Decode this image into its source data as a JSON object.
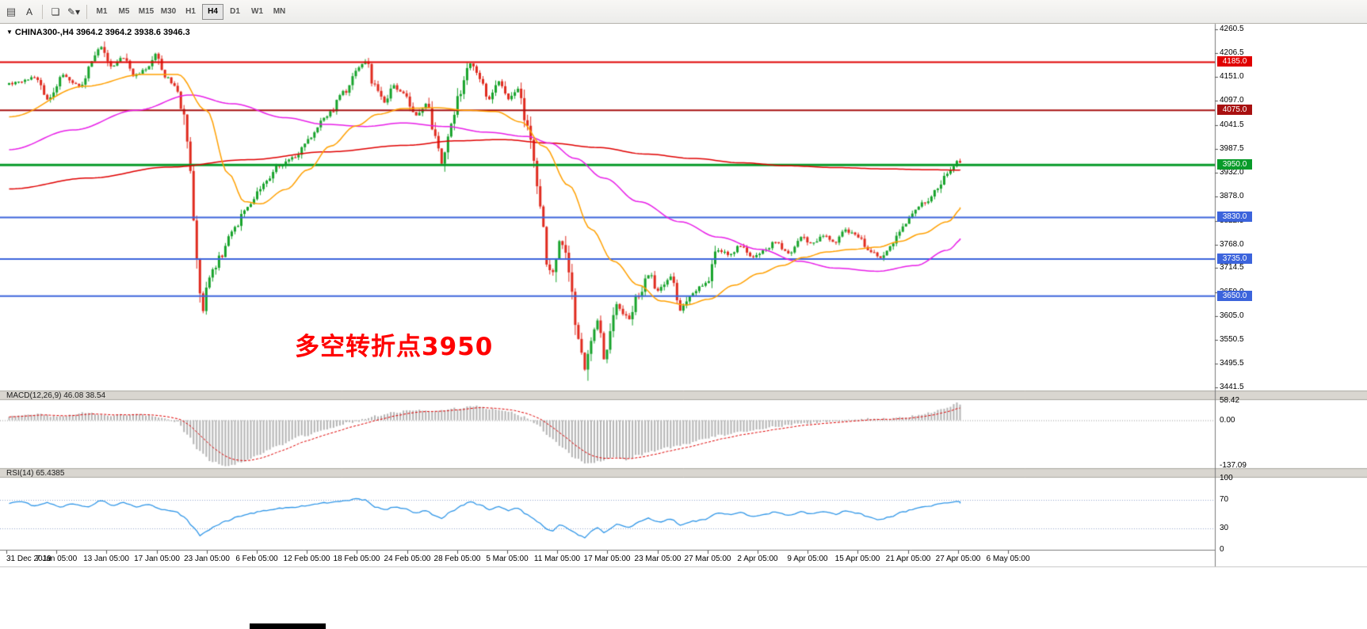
{
  "toolbar": {
    "icons": {
      "layout": "▤",
      "annotate": "A",
      "objects": "❏",
      "draw": "✎",
      "caret": "▾"
    },
    "timeframes": [
      "M1",
      "M5",
      "M15",
      "M30",
      "H1",
      "H4",
      "D1",
      "W1",
      "MN"
    ],
    "selected_timeframe": "H4"
  },
  "chart": {
    "caret": "▼",
    "title": "CHINA300-,H4  3964.2 3964.2 3938.6 3946.3",
    "annotation": "多空转折点3950",
    "price_scale_ticks": [
      "4260.5",
      "4206.5",
      "4151.0",
      "4097.0",
      "4041.5",
      "3987.5",
      "3932.0",
      "3878.0",
      "3822.5",
      "3768.0",
      "3714.5",
      "3659.0",
      "3605.0",
      "3550.5",
      "3495.5",
      "3441.5"
    ],
    "levels": [
      {
        "label": "4185.0",
        "price": 4185.0,
        "color": "#e00000",
        "width": 2
      },
      {
        "label": "4075.0",
        "price": 4075.0,
        "color": "#a81010",
        "width": 2
      },
      {
        "label": "3950.0",
        "price": 3950.0,
        "color": "#089b2a",
        "width": 3
      },
      {
        "label": "3830.0",
        "price": 3830.0,
        "color": "#3c64dc",
        "width": 2
      },
      {
        "label": "3735.0",
        "price": 3735.0,
        "color": "#3c64dc",
        "width": 2
      },
      {
        "label": "3650.0",
        "price": 3650.0,
        "color": "#3c64dc",
        "width": 2
      }
    ]
  },
  "chart_data": {
    "type": "candlestick",
    "symbol": "CHINA300-",
    "timeframe": "H4",
    "last_bar": {
      "open": 3964.2,
      "high": 3964.2,
      "low": 3938.6,
      "close": 3946.3
    },
    "y_range": [
      3436,
      4271
    ],
    "bars": 300,
    "colors": {
      "up": "#17a32b",
      "down": "#e02a1e",
      "ma_slow": "#e00000",
      "ma_mid": "#e81ee8",
      "ma_fast": "#ffa000",
      "macd_hist": "#b4b4b4",
      "macd_signal": "#e00000",
      "rsi": "#2f96e8"
    },
    "price_path": [
      [
        0,
        4135
      ],
      [
        8,
        4150
      ],
      [
        12,
        4100
      ],
      [
        17,
        4155
      ],
      [
        22,
        4130
      ],
      [
        27,
        4195
      ],
      [
        29,
        4222
      ],
      [
        32,
        4175
      ],
      [
        36,
        4195
      ],
      [
        39,
        4155
      ],
      [
        43,
        4170
      ],
      [
        46,
        4205
      ],
      [
        49,
        4150
      ],
      [
        52,
        4135
      ],
      [
        55,
        4060
      ],
      [
        57,
        3940
      ],
      [
        59,
        3720
      ],
      [
        61,
        3615
      ],
      [
        63,
        3700
      ],
      [
        67,
        3745
      ],
      [
        70,
        3800
      ],
      [
        75,
        3850
      ],
      [
        80,
        3905
      ],
      [
        85,
        3950
      ],
      [
        90,
        3970
      ],
      [
        95,
        4015
      ],
      [
        100,
        4065
      ],
      [
        106,
        4120
      ],
      [
        109,
        4165
      ],
      [
        112,
        4190
      ],
      [
        115,
        4130
      ],
      [
        118,
        4095
      ],
      [
        121,
        4130
      ],
      [
        124,
        4115
      ],
      [
        128,
        4065
      ],
      [
        131,
        4090
      ],
      [
        134,
        4010
      ],
      [
        136,
        3955
      ],
      [
        139,
        4035
      ],
      [
        142,
        4120
      ],
      [
        145,
        4185
      ],
      [
        148,
        4150
      ],
      [
        151,
        4100
      ],
      [
        154,
        4140
      ],
      [
        157,
        4100
      ],
      [
        160,
        4125
      ],
      [
        163,
        4040
      ],
      [
        165,
        3960
      ],
      [
        167,
        3870
      ],
      [
        169,
        3730
      ],
      [
        171,
        3700
      ],
      [
        173,
        3780
      ],
      [
        175,
        3750
      ],
      [
        177,
        3650
      ],
      [
        179,
        3550
      ],
      [
        181,
        3480
      ],
      [
        183,
        3560
      ],
      [
        185,
        3600
      ],
      [
        187,
        3510
      ],
      [
        189,
        3560
      ],
      [
        191,
        3630
      ],
      [
        195,
        3600
      ],
      [
        198,
        3655
      ],
      [
        201,
        3700
      ],
      [
        204,
        3665
      ],
      [
        208,
        3690
      ],
      [
        211,
        3620
      ],
      [
        215,
        3655
      ],
      [
        219,
        3680
      ],
      [
        223,
        3755
      ],
      [
        227,
        3745
      ],
      [
        230,
        3765
      ],
      [
        234,
        3740
      ],
      [
        238,
        3760
      ],
      [
        241,
        3775
      ],
      [
        245,
        3750
      ],
      [
        249,
        3785
      ],
      [
        252,
        3770
      ],
      [
        256,
        3790
      ],
      [
        260,
        3775
      ],
      [
        263,
        3800
      ],
      [
        267,
        3785
      ],
      [
        271,
        3750
      ],
      [
        274,
        3735
      ],
      [
        277,
        3760
      ],
      [
        281,
        3810
      ],
      [
        284,
        3840
      ],
      [
        288,
        3865
      ],
      [
        292,
        3900
      ],
      [
        295,
        3930
      ],
      [
        298,
        3958
      ],
      [
        300,
        3946
      ]
    ],
    "moving_averages": [
      {
        "name": "ma-slow-red",
        "color": "#e00000",
        "points": [
          [
            0,
            3895
          ],
          [
            25,
            3920
          ],
          [
            50,
            3945
          ],
          [
            75,
            3962
          ],
          [
            100,
            3980
          ],
          [
            125,
            3995
          ],
          [
            140,
            4005
          ],
          [
            155,
            4008
          ],
          [
            170,
            4000
          ],
          [
            185,
            3990
          ],
          [
            200,
            3975
          ],
          [
            215,
            3965
          ],
          [
            230,
            3955
          ],
          [
            245,
            3948
          ],
          [
            260,
            3944
          ],
          [
            275,
            3941
          ],
          [
            290,
            3939
          ],
          [
            300,
            3938
          ]
        ]
      },
      {
        "name": "ma-mid-magenta",
        "color": "#e81ee8",
        "points": [
          [
            0,
            3985
          ],
          [
            20,
            4030
          ],
          [
            40,
            4075
          ],
          [
            57,
            4110
          ],
          [
            70,
            4090
          ],
          [
            87,
            4058
          ],
          [
            99,
            4043
          ],
          [
            112,
            4038
          ],
          [
            124,
            4046
          ],
          [
            137,
            4038
          ],
          [
            150,
            4025
          ],
          [
            163,
            4015
          ],
          [
            170,
            4000
          ],
          [
            178,
            3965
          ],
          [
            187,
            3920
          ],
          [
            198,
            3866
          ],
          [
            211,
            3820
          ],
          [
            223,
            3785
          ],
          [
            236,
            3757
          ],
          [
            248,
            3730
          ],
          [
            260,
            3714
          ],
          [
            273,
            3707
          ],
          [
            285,
            3720
          ],
          [
            295,
            3755
          ],
          [
            300,
            3782
          ]
        ]
      },
      {
        "name": "ma-fast-orange",
        "color": "#ffa000",
        "points": [
          [
            0,
            4060
          ],
          [
            24,
            4130
          ],
          [
            42,
            4157
          ],
          [
            53,
            4157
          ],
          [
            62,
            4075
          ],
          [
            69,
            3930
          ],
          [
            74,
            3866
          ],
          [
            79,
            3861
          ],
          [
            87,
            3894
          ],
          [
            94,
            3939
          ],
          [
            101,
            3993
          ],
          [
            109,
            4039
          ],
          [
            116,
            4066
          ],
          [
            124,
            4079
          ],
          [
            134,
            4081
          ],
          [
            144,
            4075
          ],
          [
            153,
            4072
          ],
          [
            161,
            4048
          ],
          [
            168,
            3993
          ],
          [
            176,
            3903
          ],
          [
            183,
            3803
          ],
          [
            190,
            3730
          ],
          [
            198,
            3675
          ],
          [
            205,
            3639
          ],
          [
            213,
            3630
          ],
          [
            220,
            3643
          ],
          [
            228,
            3675
          ],
          [
            236,
            3702
          ],
          [
            243,
            3720
          ],
          [
            250,
            3739
          ],
          [
            257,
            3751
          ],
          [
            265,
            3757
          ],
          [
            273,
            3762
          ],
          [
            280,
            3775
          ],
          [
            287,
            3793
          ],
          [
            295,
            3820
          ],
          [
            300,
            3853
          ]
        ]
      }
    ],
    "macd": {
      "label": "MACD(12,26,9) 46.08 38.54",
      "scale": [
        "58.42",
        "0.00",
        "-137.09"
      ],
      "range": [
        58.42,
        -137.09
      ],
      "path": [
        [
          0,
          12
        ],
        [
          8,
          18
        ],
        [
          16,
          10
        ],
        [
          24,
          22
        ],
        [
          32,
          15
        ],
        [
          40,
          18
        ],
        [
          48,
          8
        ],
        [
          53,
          -5
        ],
        [
          56,
          -45
        ],
        [
          60,
          -95
        ],
        [
          64,
          -125
        ],
        [
          68,
          -137
        ],
        [
          73,
          -128
        ],
        [
          78,
          -105
        ],
        [
          85,
          -75
        ],
        [
          92,
          -48
        ],
        [
          100,
          -25
        ],
        [
          108,
          -5
        ],
        [
          115,
          12
        ],
        [
          122,
          25
        ],
        [
          128,
          32
        ],
        [
          134,
          28
        ],
        [
          140,
          35
        ],
        [
          146,
          42
        ],
        [
          152,
          35
        ],
        [
          158,
          25
        ],
        [
          162,
          10
        ],
        [
          166,
          -15
        ],
        [
          170,
          -50
        ],
        [
          174,
          -85
        ],
        [
          178,
          -115
        ],
        [
          182,
          -130
        ],
        [
          186,
          -122
        ],
        [
          190,
          -112
        ],
        [
          194,
          -118
        ],
        [
          198,
          -105
        ],
        [
          203,
          -92
        ],
        [
          208,
          -82
        ],
        [
          213,
          -70
        ],
        [
          218,
          -58
        ],
        [
          224,
          -45
        ],
        [
          230,
          -34
        ],
        [
          236,
          -26
        ],
        [
          242,
          -18
        ],
        [
          248,
          -12
        ],
        [
          254,
          -7
        ],
        [
          260,
          -3
        ],
        [
          266,
          2
        ],
        [
          272,
          5
        ],
        [
          277,
          4
        ],
        [
          281,
          8
        ],
        [
          285,
          14
        ],
        [
          289,
          22
        ],
        [
          293,
          32
        ],
        [
          296,
          42
        ],
        [
          298,
          52
        ],
        [
          300,
          46
        ]
      ]
    },
    "rsi": {
      "label": "RSI(14) 65.4385",
      "scale": [
        "100",
        "70",
        "30",
        "0"
      ],
      "level_lines": [
        70,
        30
      ],
      "path": [
        [
          0,
          65
        ],
        [
          4,
          68
        ],
        [
          8,
          61
        ],
        [
          12,
          66
        ],
        [
          16,
          60
        ],
        [
          20,
          64
        ],
        [
          25,
          61
        ],
        [
          29,
          69
        ],
        [
          33,
          62
        ],
        [
          36,
          66
        ],
        [
          40,
          60
        ],
        [
          44,
          63
        ],
        [
          48,
          57
        ],
        [
          52,
          54
        ],
        [
          55,
          46
        ],
        [
          58,
          32
        ],
        [
          60,
          20
        ],
        [
          62,
          26
        ],
        [
          65,
          34
        ],
        [
          68,
          40
        ],
        [
          72,
          46
        ],
        [
          76,
          51
        ],
        [
          80,
          55
        ],
        [
          85,
          58
        ],
        [
          90,
          60
        ],
        [
          95,
          63
        ],
        [
          100,
          66
        ],
        [
          106,
          69
        ],
        [
          109,
          71
        ],
        [
          112,
          70
        ],
        [
          115,
          60
        ],
        [
          118,
          56
        ],
        [
          121,
          60
        ],
        [
          124,
          58
        ],
        [
          128,
          52
        ],
        [
          131,
          55
        ],
        [
          134,
          47
        ],
        [
          136,
          44
        ],
        [
          139,
          54
        ],
        [
          142,
          61
        ],
        [
          145,
          67
        ],
        [
          148,
          63
        ],
        [
          151,
          56
        ],
        [
          154,
          61
        ],
        [
          157,
          55
        ],
        [
          160,
          59
        ],
        [
          163,
          49
        ],
        [
          165,
          43
        ],
        [
          167,
          37
        ],
        [
          169,
          29
        ],
        [
          171,
          27
        ],
        [
          173,
          35
        ],
        [
          175,
          32
        ],
        [
          177,
          26
        ],
        [
          179,
          21
        ],
        [
          181,
          17
        ],
        [
          183,
          26
        ],
        [
          185,
          31
        ],
        [
          187,
          24
        ],
        [
          189,
          29
        ],
        [
          191,
          36
        ],
        [
          195,
          32
        ],
        [
          198,
          39
        ],
        [
          201,
          44
        ],
        [
          204,
          39
        ],
        [
          208,
          43
        ],
        [
          211,
          35
        ],
        [
          215,
          40
        ],
        [
          219,
          43
        ],
        [
          223,
          52
        ],
        [
          227,
          49
        ],
        [
          230,
          52
        ],
        [
          234,
          47
        ],
        [
          238,
          50
        ],
        [
          241,
          53
        ],
        [
          245,
          48
        ],
        [
          249,
          53
        ],
        [
          252,
          50
        ],
        [
          256,
          53
        ],
        [
          260,
          50
        ],
        [
          263,
          54
        ],
        [
          267,
          51
        ],
        [
          271,
          45
        ],
        [
          274,
          42
        ],
        [
          277,
          46
        ],
        [
          281,
          53
        ],
        [
          284,
          57
        ],
        [
          288,
          60
        ],
        [
          292,
          64
        ],
        [
          295,
          66
        ],
        [
          298,
          68
        ],
        [
          300,
          65.4
        ]
      ]
    },
    "dates": [
      "31 Dec 2019",
      "7 Jan 05:00",
      "13 Jan 05:00",
      "17 Jan 05:00",
      "23 Jan 05:00",
      "6 Feb 05:00",
      "12 Feb 05:00",
      "18 Feb 05:00",
      "24 Feb 05:00",
      "28 Feb 05:00",
      "5 Mar 05:00",
      "11 Mar 05:00",
      "17 Mar 05:00",
      "23 Mar 05:00",
      "27 Mar 05:00",
      "2 Apr 05:00",
      "9 Apr 05:00",
      "15 Apr 05:00",
      "21 Apr 05:00",
      "27 Apr 05:00",
      "6 May 05:00"
    ]
  }
}
